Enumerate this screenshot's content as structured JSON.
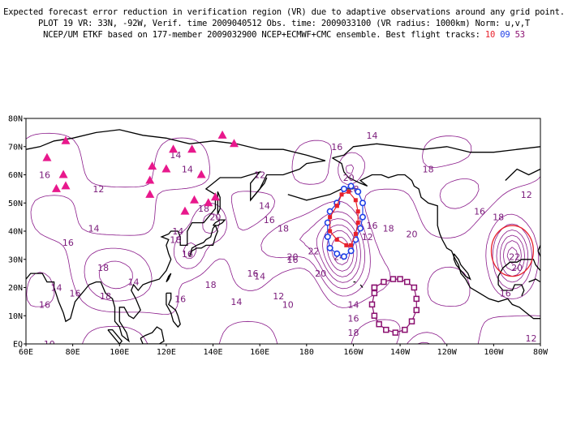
{
  "header": {
    "line1": "Expected forecast error reduction in verification region (VR) due to adaptive observations around any grid point.",
    "line2": "PLOT 19 VR: 33N, -92W, Verif. time 2009040512 Obs. time: 2009033100 (VR radius: 1000km) Norm: u,v,T",
    "line3": "NCEP/UM ETKF based on 177-member 2009032900 NCEP+ECMWF+CMC ensemble. Best flight tracks:",
    "tracks": [
      "10",
      "09",
      "53"
    ]
  },
  "colors": {
    "contour": "#8a1a8a",
    "coast": "#000000",
    "triangles": "#e8188c",
    "track_red": "#e8212c",
    "track_blue": "#1f3fe6",
    "track_purple": "#8a0f6f",
    "vr_circle": "#e8212c"
  },
  "axes": {
    "lat_labels": [
      "80N",
      "70N",
      "60N",
      "50N",
      "40N",
      "30N",
      "20N",
      "10N",
      "EQ"
    ],
    "lon_labels": [
      "60E",
      "80E",
      "100E",
      "120E",
      "140E",
      "160E",
      "180",
      "160W",
      "140W",
      "120W",
      "100W",
      "80W"
    ]
  },
  "contour_labels": [
    {
      "t": "16",
      "lon": 68,
      "lat": 60
    },
    {
      "t": "12",
      "lon": 91,
      "lat": 55
    },
    {
      "t": "14",
      "lon": 89,
      "lat": 41
    },
    {
      "t": "16",
      "lon": 78,
      "lat": 36
    },
    {
      "t": "18",
      "lon": 93,
      "lat": 27
    },
    {
      "t": "14",
      "lon": 73,
      "lat": 20
    },
    {
      "t": "16",
      "lon": 81,
      "lat": 18
    },
    {
      "t": "18",
      "lon": 94,
      "lat": 17
    },
    {
      "t": "16",
      "lon": 68,
      "lat": 14
    },
    {
      "t": "10",
      "lon": 70,
      "lat": 0
    },
    {
      "t": "12",
      "lon": 86,
      "lat": -4
    },
    {
      "t": "14",
      "lon": 106,
      "lat": 22
    },
    {
      "t": "16",
      "lon": 126,
      "lat": 16
    },
    {
      "t": "18",
      "lon": 124,
      "lat": 37
    },
    {
      "t": "16",
      "lon": 129,
      "lat": 32
    },
    {
      "t": "14",
      "lon": 125,
      "lat": 40
    },
    {
      "t": "14",
      "lon": 129,
      "lat": 62
    },
    {
      "t": "14",
      "lon": 124,
      "lat": 67
    },
    {
      "t": "18",
      "lon": 136,
      "lat": 48
    },
    {
      "t": "20",
      "lon": 141,
      "lat": 45
    },
    {
      "t": "18",
      "lon": 139,
      "lat": 21
    },
    {
      "t": "14",
      "lon": 150,
      "lat": 15
    },
    {
      "t": "16",
      "lon": 157,
      "lat": 25
    },
    {
      "t": "10",
      "lon": 127,
      "lat": -3
    },
    {
      "t": "12",
      "lon": 137,
      "lat": -9
    },
    {
      "t": "14",
      "lon": 120,
      "lat": -20
    },
    {
      "t": "12",
      "lon": 114,
      "lat": -21
    },
    {
      "t": "14",
      "lon": 145,
      "lat": -21
    },
    {
      "t": "12",
      "lon": 160,
      "lat": 60
    },
    {
      "t": "14",
      "lon": 162,
      "lat": 49
    },
    {
      "t": "16",
      "lon": 164,
      "lat": 44
    },
    {
      "t": "18",
      "lon": 170,
      "lat": 41
    },
    {
      "t": "20",
      "lon": 174,
      "lat": 31
    },
    {
      "t": "16",
      "lon": 174,
      "lat": 30
    },
    {
      "t": "14",
      "lon": 160,
      "lat": 24
    },
    {
      "t": "12",
      "lon": 168,
      "lat": 17
    },
    {
      "t": "10",
      "lon": 172,
      "lat": 14
    },
    {
      "t": "16",
      "lon": 193,
      "lat": 70
    },
    {
      "t": "14",
      "lon": 208,
      "lat": 74
    },
    {
      "t": "20",
      "lon": 198,
      "lat": 59
    },
    {
      "t": "18",
      "lon": 200,
      "lat": 55
    },
    {
      "t": "24",
      "lon": 194,
      "lat": 31
    },
    {
      "t": "22",
      "lon": 183,
      "lat": 33
    },
    {
      "t": "20",
      "lon": 186,
      "lat": 25
    },
    {
      "t": "16",
      "lon": 208,
      "lat": 42
    },
    {
      "t": "18",
      "lon": 215,
      "lat": 41
    },
    {
      "t": "12",
      "lon": 206,
      "lat": 38
    },
    {
      "t": "20",
      "lon": 225,
      "lat": 39
    },
    {
      "t": "18",
      "lon": 232,
      "lat": 62
    },
    {
      "t": "14",
      "lon": 200,
      "lat": 14
    },
    {
      "t": "16",
      "lon": 200,
      "lat": 9
    },
    {
      "t": "18",
      "lon": 200,
      "lat": 4
    },
    {
      "t": "22",
      "lon": 230,
      "lat": -12
    },
    {
      "t": "20",
      "lon": 227,
      "lat": -18
    },
    {
      "t": "18",
      "lon": 224,
      "lat": -22
    },
    {
      "t": "10",
      "lon": 208,
      "lat": -25
    },
    {
      "t": "10",
      "lon": 248,
      "lat": -25
    },
    {
      "t": "12",
      "lon": 274,
      "lat": 53
    },
    {
      "t": "16",
      "lon": 254,
      "lat": 47
    },
    {
      "t": "18",
      "lon": 262,
      "lat": 45
    },
    {
      "t": "22",
      "lon": 269,
      "lat": 31
    },
    {
      "t": "20",
      "lon": 270,
      "lat": 27
    },
    {
      "t": "16",
      "lon": 265,
      "lat": 18
    },
    {
      "t": "12",
      "lon": 276,
      "lat": 2
    }
  ],
  "triangles": [
    [
      69,
      66
    ],
    [
      77,
      72
    ],
    [
      73,
      55
    ],
    [
      76,
      60
    ],
    [
      77,
      56
    ],
    [
      113,
      58
    ],
    [
      114,
      63
    ],
    [
      113,
      53
    ],
    [
      120,
      62
    ],
    [
      123,
      69
    ],
    [
      128,
      47
    ],
    [
      132,
      51
    ],
    [
      131,
      69
    ],
    [
      135,
      60
    ],
    [
      144,
      74
    ],
    [
      141,
      52
    ],
    [
      138,
      50
    ],
    [
      149,
      71
    ]
  ],
  "tracks": {
    "red": [
      [
        193,
        49
      ],
      [
        190,
        45
      ],
      [
        190,
        40
      ],
      [
        193,
        37
      ],
      [
        197,
        35
      ],
      [
        199,
        35
      ],
      [
        201,
        39
      ],
      [
        202,
        43
      ],
      [
        202,
        47
      ],
      [
        201,
        51
      ],
      [
        198,
        54
      ],
      [
        195,
        53
      ],
      [
        193,
        49
      ]
    ],
    "blue": [
      [
        193,
        50
      ],
      [
        190,
        47
      ],
      [
        189,
        43
      ],
      [
        189,
        38
      ],
      [
        190,
        34
      ],
      [
        193,
        32
      ],
      [
        196,
        31
      ],
      [
        199,
        33
      ],
      [
        201,
        37
      ],
      [
        203,
        41
      ],
      [
        204,
        45
      ],
      [
        204,
        50
      ],
      [
        202,
        54
      ],
      [
        199,
        56
      ],
      [
        196,
        55
      ],
      [
        193,
        50
      ]
    ],
    "purple": [
      [
        209,
        20
      ],
      [
        213,
        22
      ],
      [
        217,
        23
      ],
      [
        220,
        23
      ],
      [
        223,
        22
      ],
      [
        226,
        20
      ],
      [
        227,
        16
      ],
      [
        227,
        12
      ],
      [
        225,
        8
      ],
      [
        222,
        5
      ],
      [
        218,
        4
      ],
      [
        214,
        5
      ],
      [
        211,
        7
      ],
      [
        209,
        10
      ],
      [
        208,
        14
      ],
      [
        209,
        18
      ],
      [
        209,
        20
      ]
    ]
  },
  "vr": {
    "lon": 268,
    "lat": 33,
    "radius_deg": 9
  }
}
